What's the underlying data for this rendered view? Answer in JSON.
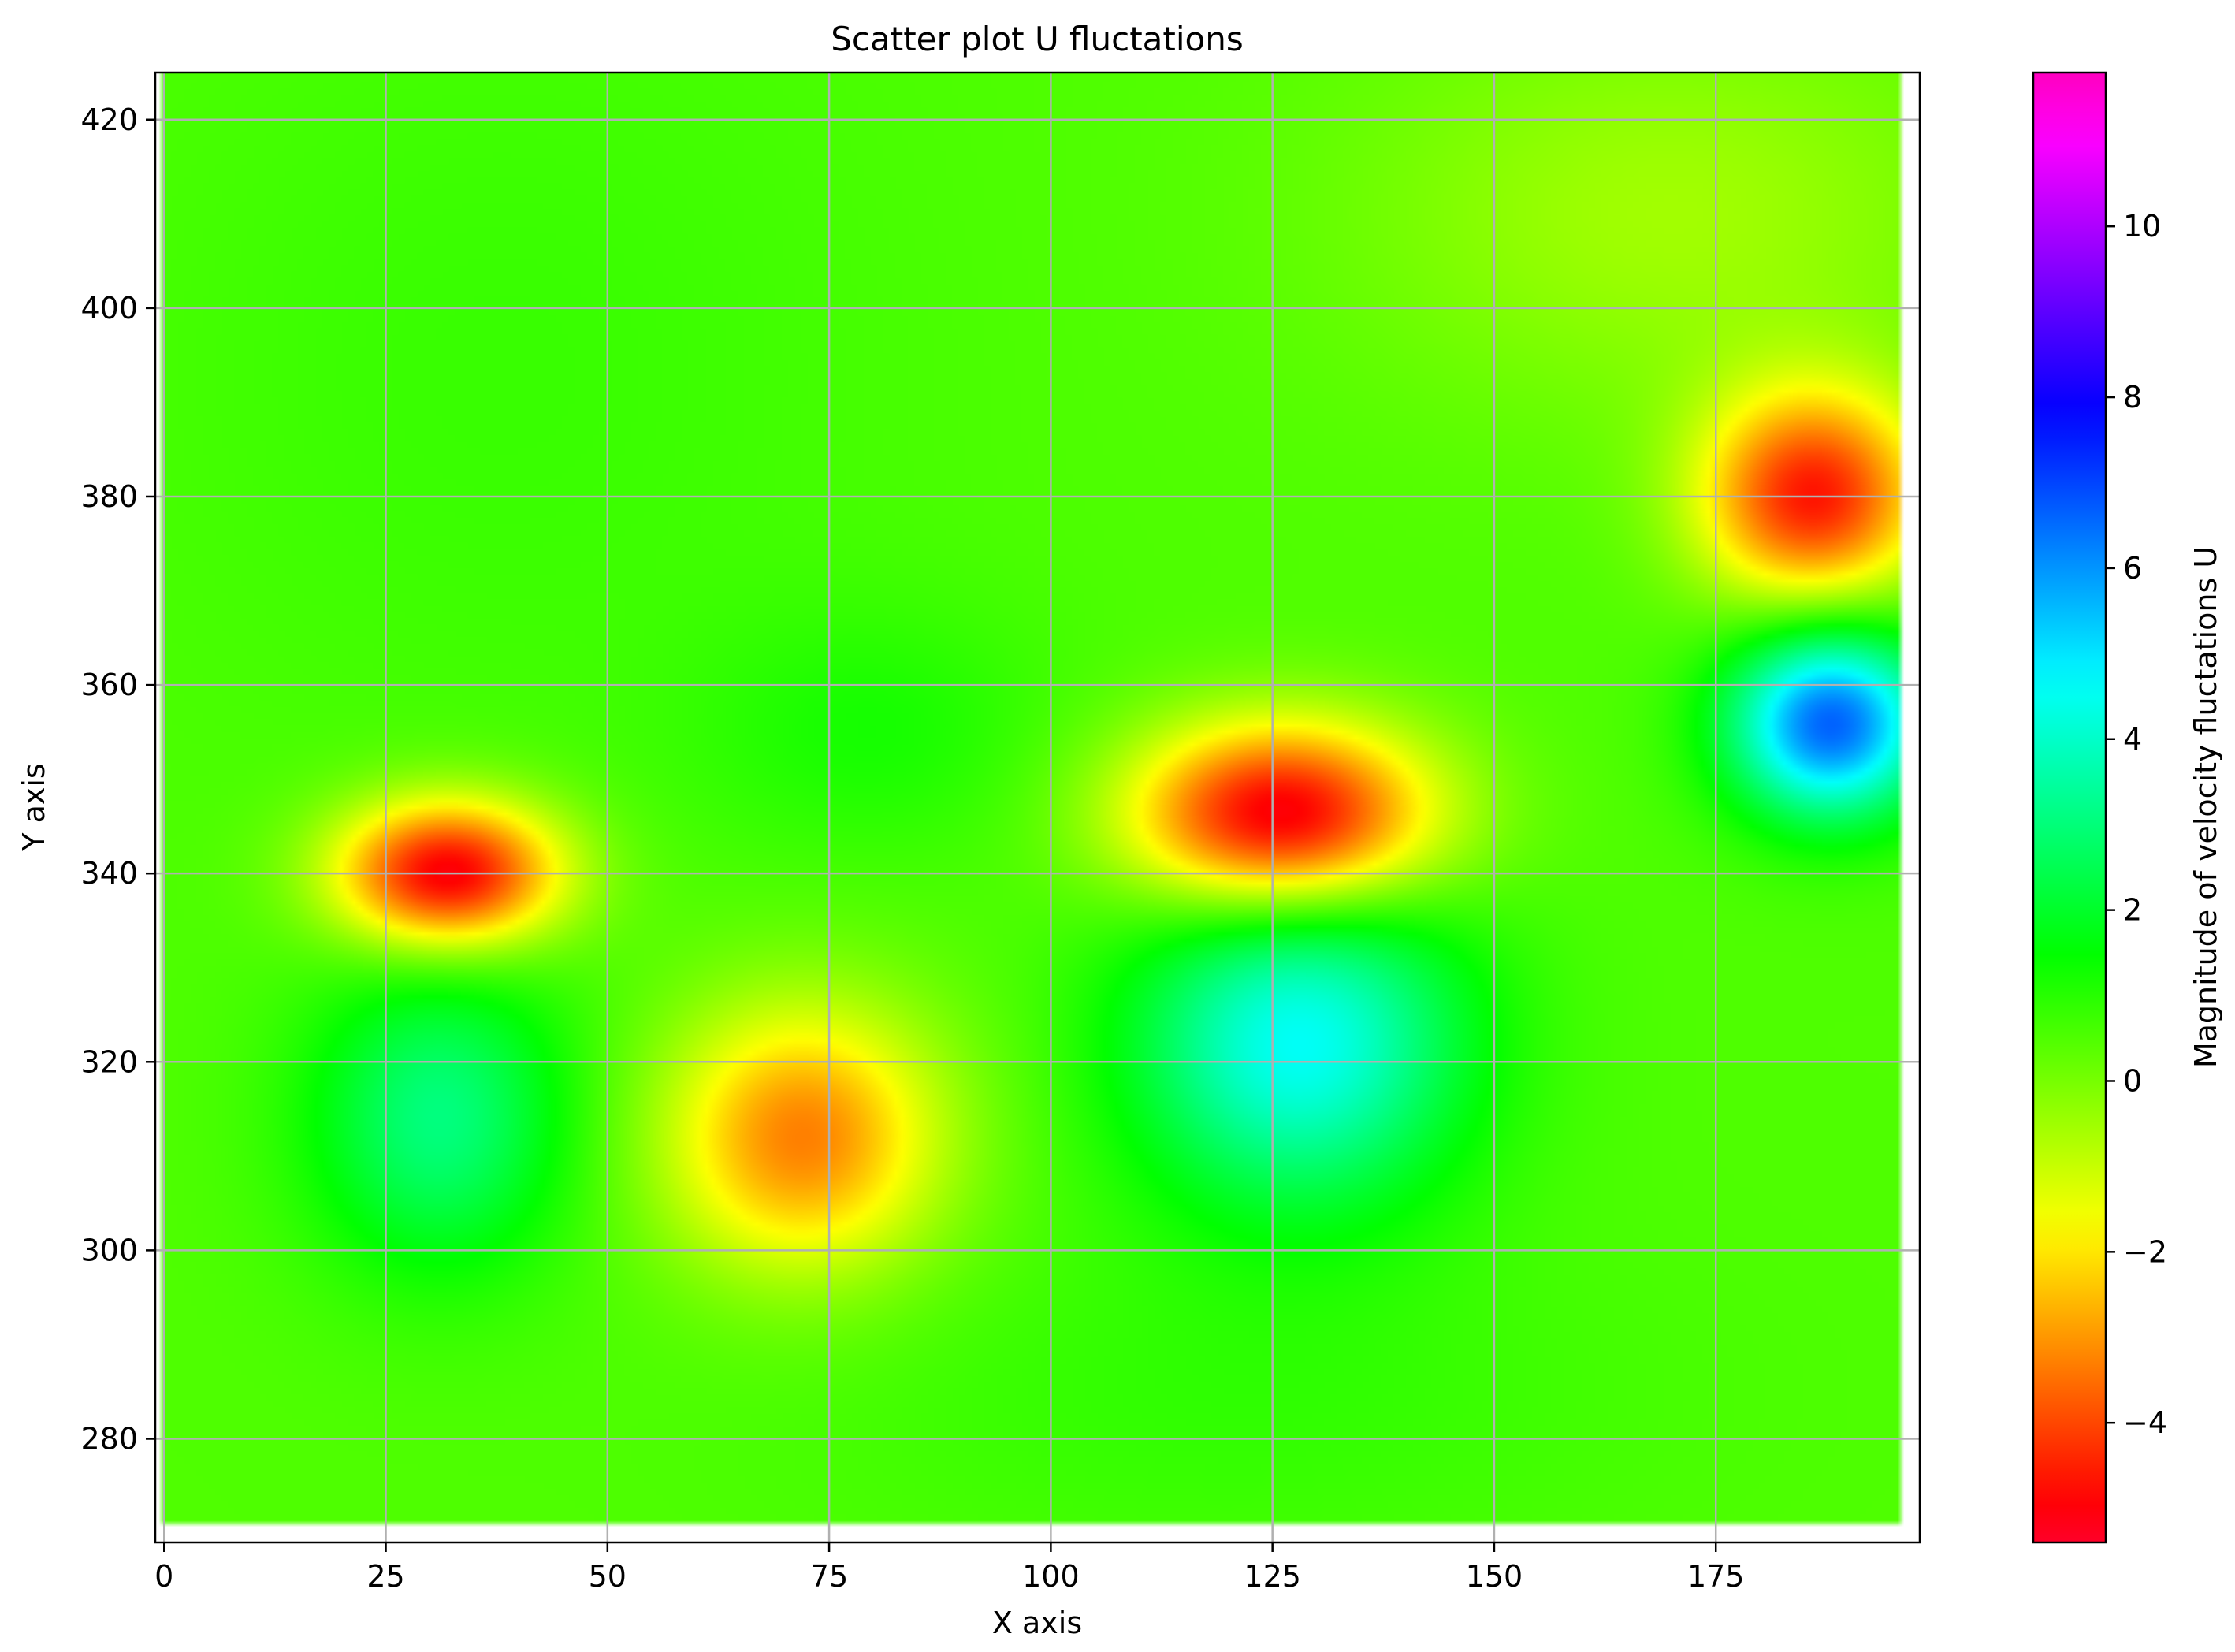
{
  "chart_data": {
    "type": "heatmap",
    "subtype": "scatter-colormap",
    "title": "Scatter plot U fluctations",
    "xlabel": "X axis",
    "ylabel": "Y axis",
    "xlim": [
      -1,
      198
    ],
    "ylim": [
      269,
      425
    ],
    "xticks": [
      0,
      25,
      50,
      75,
      100,
      125,
      150,
      175
    ],
    "yticks": [
      280,
      300,
      320,
      340,
      360,
      380,
      400,
      420
    ],
    "data_extent": {
      "x": [
        0,
        196
      ],
      "y": [
        271,
        425
      ]
    },
    "grid": true,
    "colormap": "gist_rainbow",
    "colorbar": {
      "label": "Magnitude of velocity fluctations U",
      "range": [
        -5.4,
        11.8
      ],
      "ticks": [
        -4,
        -2,
        0,
        2,
        4,
        6,
        8,
        10
      ],
      "tick_labels": [
        "−4",
        "−2",
        "0",
        "2",
        "4",
        "6",
        "8",
        "10"
      ]
    },
    "background_value": 0.5,
    "features": [
      {
        "x": 32,
        "y": 340,
        "sx": 9,
        "sy": 5.5,
        "value": -5.5
      },
      {
        "x": 31,
        "y": 314,
        "sx": 10,
        "sy": 11,
        "value": 3.2
      },
      {
        "x": 72,
        "y": 312,
        "sx": 11,
        "sy": 10,
        "value": -3.5
      },
      {
        "x": 80,
        "y": 355,
        "sx": 14,
        "sy": 9,
        "value": 1.2
      },
      {
        "x": 126,
        "y": 346,
        "sx": 12,
        "sy": 7,
        "value": -5.8
      },
      {
        "x": 128,
        "y": 322,
        "sx": 13,
        "sy": 12,
        "value": 4.8
      },
      {
        "x": 186,
        "y": 380,
        "sx": 9,
        "sy": 8,
        "value": -4.8
      },
      {
        "x": 188,
        "y": 356,
        "sx": 8,
        "sy": 7,
        "value": 7.0
      },
      {
        "x": 38,
        "y": 393,
        "sx": 30,
        "sy": 30,
        "value": 0.8
      },
      {
        "x": 120,
        "y": 285,
        "sx": 30,
        "sy": 12,
        "value": 0.9
      },
      {
        "x": 170,
        "y": 410,
        "sx": 25,
        "sy": 15,
        "value": -0.6
      }
    ],
    "colors": {
      "grid": "#b0b0b0",
      "axes": "#000000"
    }
  }
}
